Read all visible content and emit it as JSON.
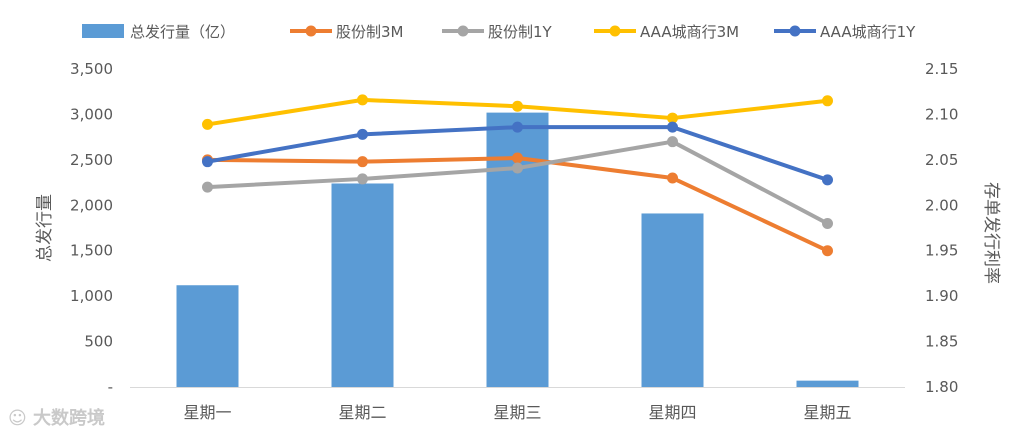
{
  "chart_data": {
    "type": "bar+line",
    "categories": [
      "星期一",
      "星期二",
      "星期三",
      "星期四",
      "星期五"
    ],
    "bar_series": {
      "name": "总发行量（亿）",
      "color": "#5B9BD5",
      "values": [
        1120,
        2240,
        3020,
        1910,
        70
      ],
      "axis": "left"
    },
    "line_series": [
      {
        "name": "股份制3M",
        "color": "#ED7D31",
        "values": [
          2.05,
          2.048,
          2.052,
          2.03,
          1.95
        ],
        "axis": "right"
      },
      {
        "name": "股份制1Y",
        "color": "#A5A5A5",
        "values": [
          2.02,
          2.029,
          2.041,
          2.07,
          1.98
        ],
        "axis": "right"
      },
      {
        "name": "AAA城商行3M",
        "color": "#FFC000",
        "values": [
          2.089,
          2.116,
          2.109,
          2.096,
          2.115
        ],
        "axis": "right"
      },
      {
        "name": "AAA城商行1Y",
        "color": "#4472C4",
        "values": [
          2.048,
          2.078,
          2.086,
          2.086,
          2.028
        ],
        "axis": "right"
      }
    ],
    "left_axis": {
      "label": "总发行量",
      "ylim": [
        0,
        3500
      ],
      "ticks": [
        0,
        500,
        1000,
        1500,
        2000,
        2500,
        3000,
        3500
      ],
      "tick_labels": [
        "-",
        "500",
        "1,000",
        "1,500",
        "2,000",
        "2,500",
        "3,000",
        "3,500"
      ]
    },
    "right_axis": {
      "label": "存单发行利率",
      "ylim": [
        1.8,
        2.15
      ],
      "ticks": [
        1.8,
        1.85,
        1.9,
        1.95,
        2.0,
        2.05,
        2.1,
        2.15
      ],
      "tick_labels": [
        "1.80",
        "1.85",
        "1.90",
        "1.95",
        "2.00",
        "2.05",
        "2.10",
        "2.15"
      ]
    },
    "grid": false,
    "legend_position": "top"
  },
  "watermark_text": "大数跨境"
}
